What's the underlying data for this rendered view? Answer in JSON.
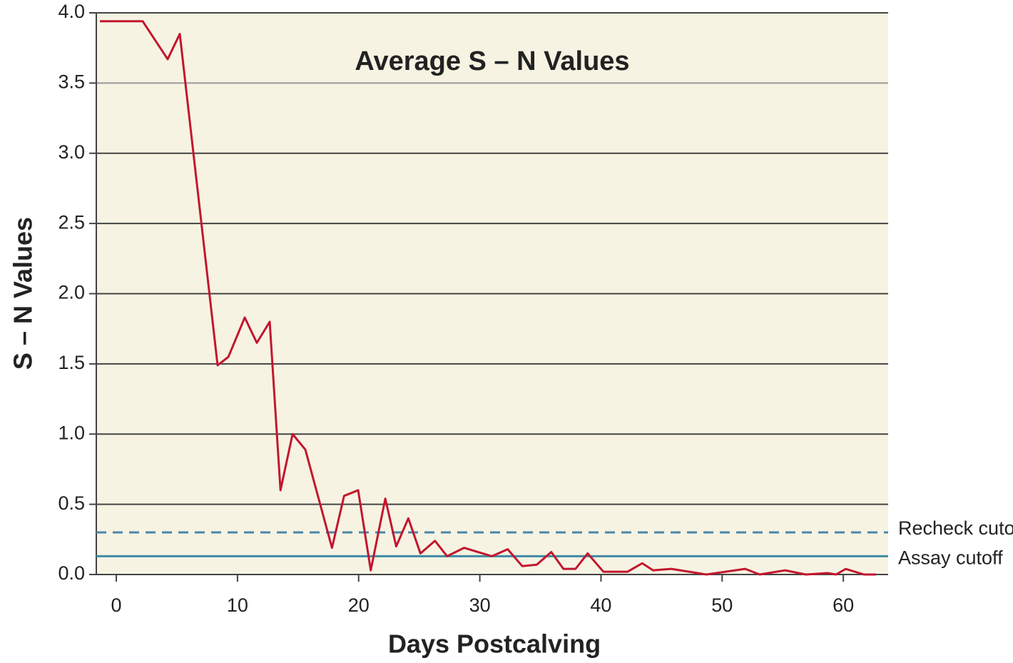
{
  "chart_data": {
    "type": "line",
    "title": "Average S – N Values",
    "x_label": "Days Postcalving",
    "y_label": "S – N Values",
    "x": [
      -1.35,
      2.18,
      4.24,
      5.24,
      8.36,
      9.25,
      10.6,
      11.6,
      12.66,
      13.55,
      14.55,
      15.6,
      17.8,
      18.8,
      19.96,
      21.0,
      22.2,
      23.1,
      24.1,
      25.1,
      26.3,
      27.3,
      28.7,
      31.0,
      32.3,
      33.5,
      34.7,
      35.9,
      36.9,
      37.9,
      38.9,
      40.2,
      42.2,
      43.4,
      44.3,
      45.8,
      48.7,
      51.9,
      53.1,
      55.2,
      56.9,
      58.7,
      59.4,
      60.2,
      61.7,
      62.7
    ],
    "series": [
      {
        "color": "#c3162e",
        "values": [
          3.94,
          3.94,
          3.67,
          3.85,
          1.49,
          1.55,
          1.83,
          1.65,
          1.8,
          0.6,
          1.0,
          0.89,
          0.19,
          0.56,
          0.6,
          0.03,
          0.54,
          0.2,
          0.4,
          0.15,
          0.24,
          0.13,
          0.19,
          0.13,
          0.18,
          0.06,
          0.07,
          0.16,
          0.04,
          0.04,
          0.15,
          0.02,
          0.02,
          0.08,
          0.03,
          0.04,
          0.0,
          0.04,
          0.0,
          0.03,
          0.0,
          0.01,
          0.0,
          0.04,
          0.0,
          0.0
        ]
      }
    ],
    "reference_lines": [
      {
        "label": "Recheck cuto",
        "value": 0.3,
        "color": "#4a86a8",
        "style": "dashed"
      },
      {
        "label": "Assay cutoff",
        "value": 0.13,
        "color": "#3f8aa5",
        "style": "solid"
      }
    ],
    "xlim": [
      -1.65,
      63.7
    ],
    "ylim": [
      0,
      4
    ],
    "xticks": [
      0,
      10,
      20,
      30,
      40,
      50,
      60
    ],
    "yticks": [
      {
        "value": 0,
        "label": "0.0"
      },
      0.5,
      {
        "value": 1,
        "label": "1.0"
      },
      1.5,
      {
        "value": 2,
        "label": "2.0"
      },
      2.5,
      {
        "value": 3,
        "label": "3.0"
      },
      3.5,
      {
        "value": 4,
        "label": "4.0"
      }
    ],
    "grid": true,
    "background": "#f6f3e3"
  }
}
